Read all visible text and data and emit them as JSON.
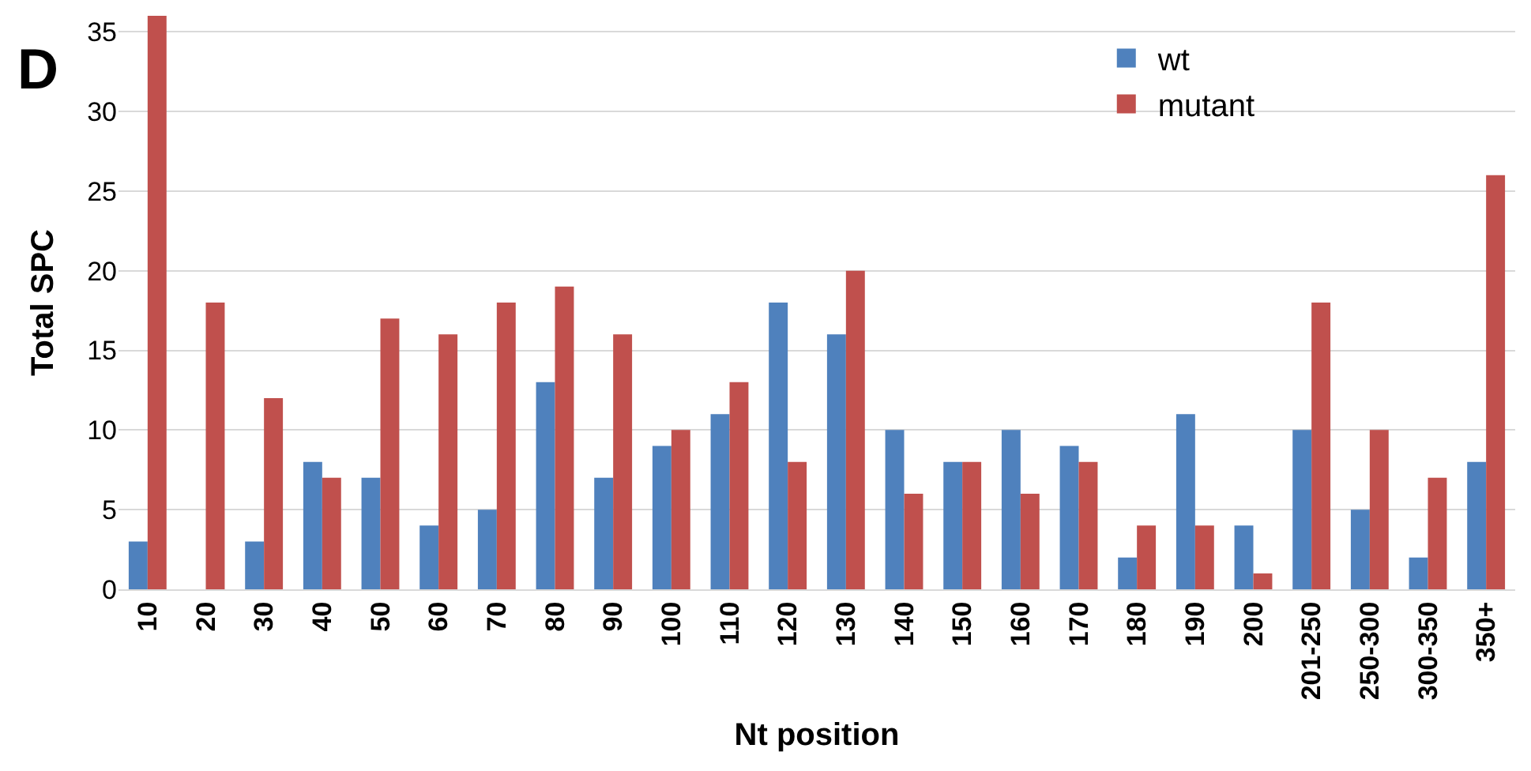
{
  "chart_data": {
    "type": "bar",
    "categories": [
      "10",
      "20",
      "30",
      "40",
      "50",
      "60",
      "70",
      "80",
      "90",
      "100",
      "110",
      "120",
      "130",
      "140",
      "150",
      "160",
      "170",
      "180",
      "190",
      "200",
      "201-250",
      "250-300",
      "300-350",
      "350+"
    ],
    "series": [
      {
        "name": "wt",
        "color": "#4f81bd",
        "values": [
          3,
          0,
          3,
          8,
          7,
          4,
          5,
          13,
          7,
          9,
          11,
          18,
          16,
          10,
          8,
          10,
          9,
          2,
          11,
          4,
          10,
          5,
          2,
          8
        ]
      },
      {
        "name": "mutant",
        "color": "#c0504d",
        "values": [
          36,
          18,
          12,
          7,
          17,
          16,
          18,
          19,
          16,
          10,
          13,
          8,
          20,
          6,
          8,
          6,
          8,
          4,
          4,
          1,
          18,
          10,
          7,
          26
        ]
      }
    ],
    "xlabel": "Nt position",
    "ylabel": "Total SPC",
    "ylim": [
      0,
      36
    ],
    "yticks": [
      0,
      5,
      10,
      15,
      20,
      25,
      30,
      35
    ],
    "grid": "y",
    "legend": "top right",
    "annotations": [
      "D"
    ]
  }
}
